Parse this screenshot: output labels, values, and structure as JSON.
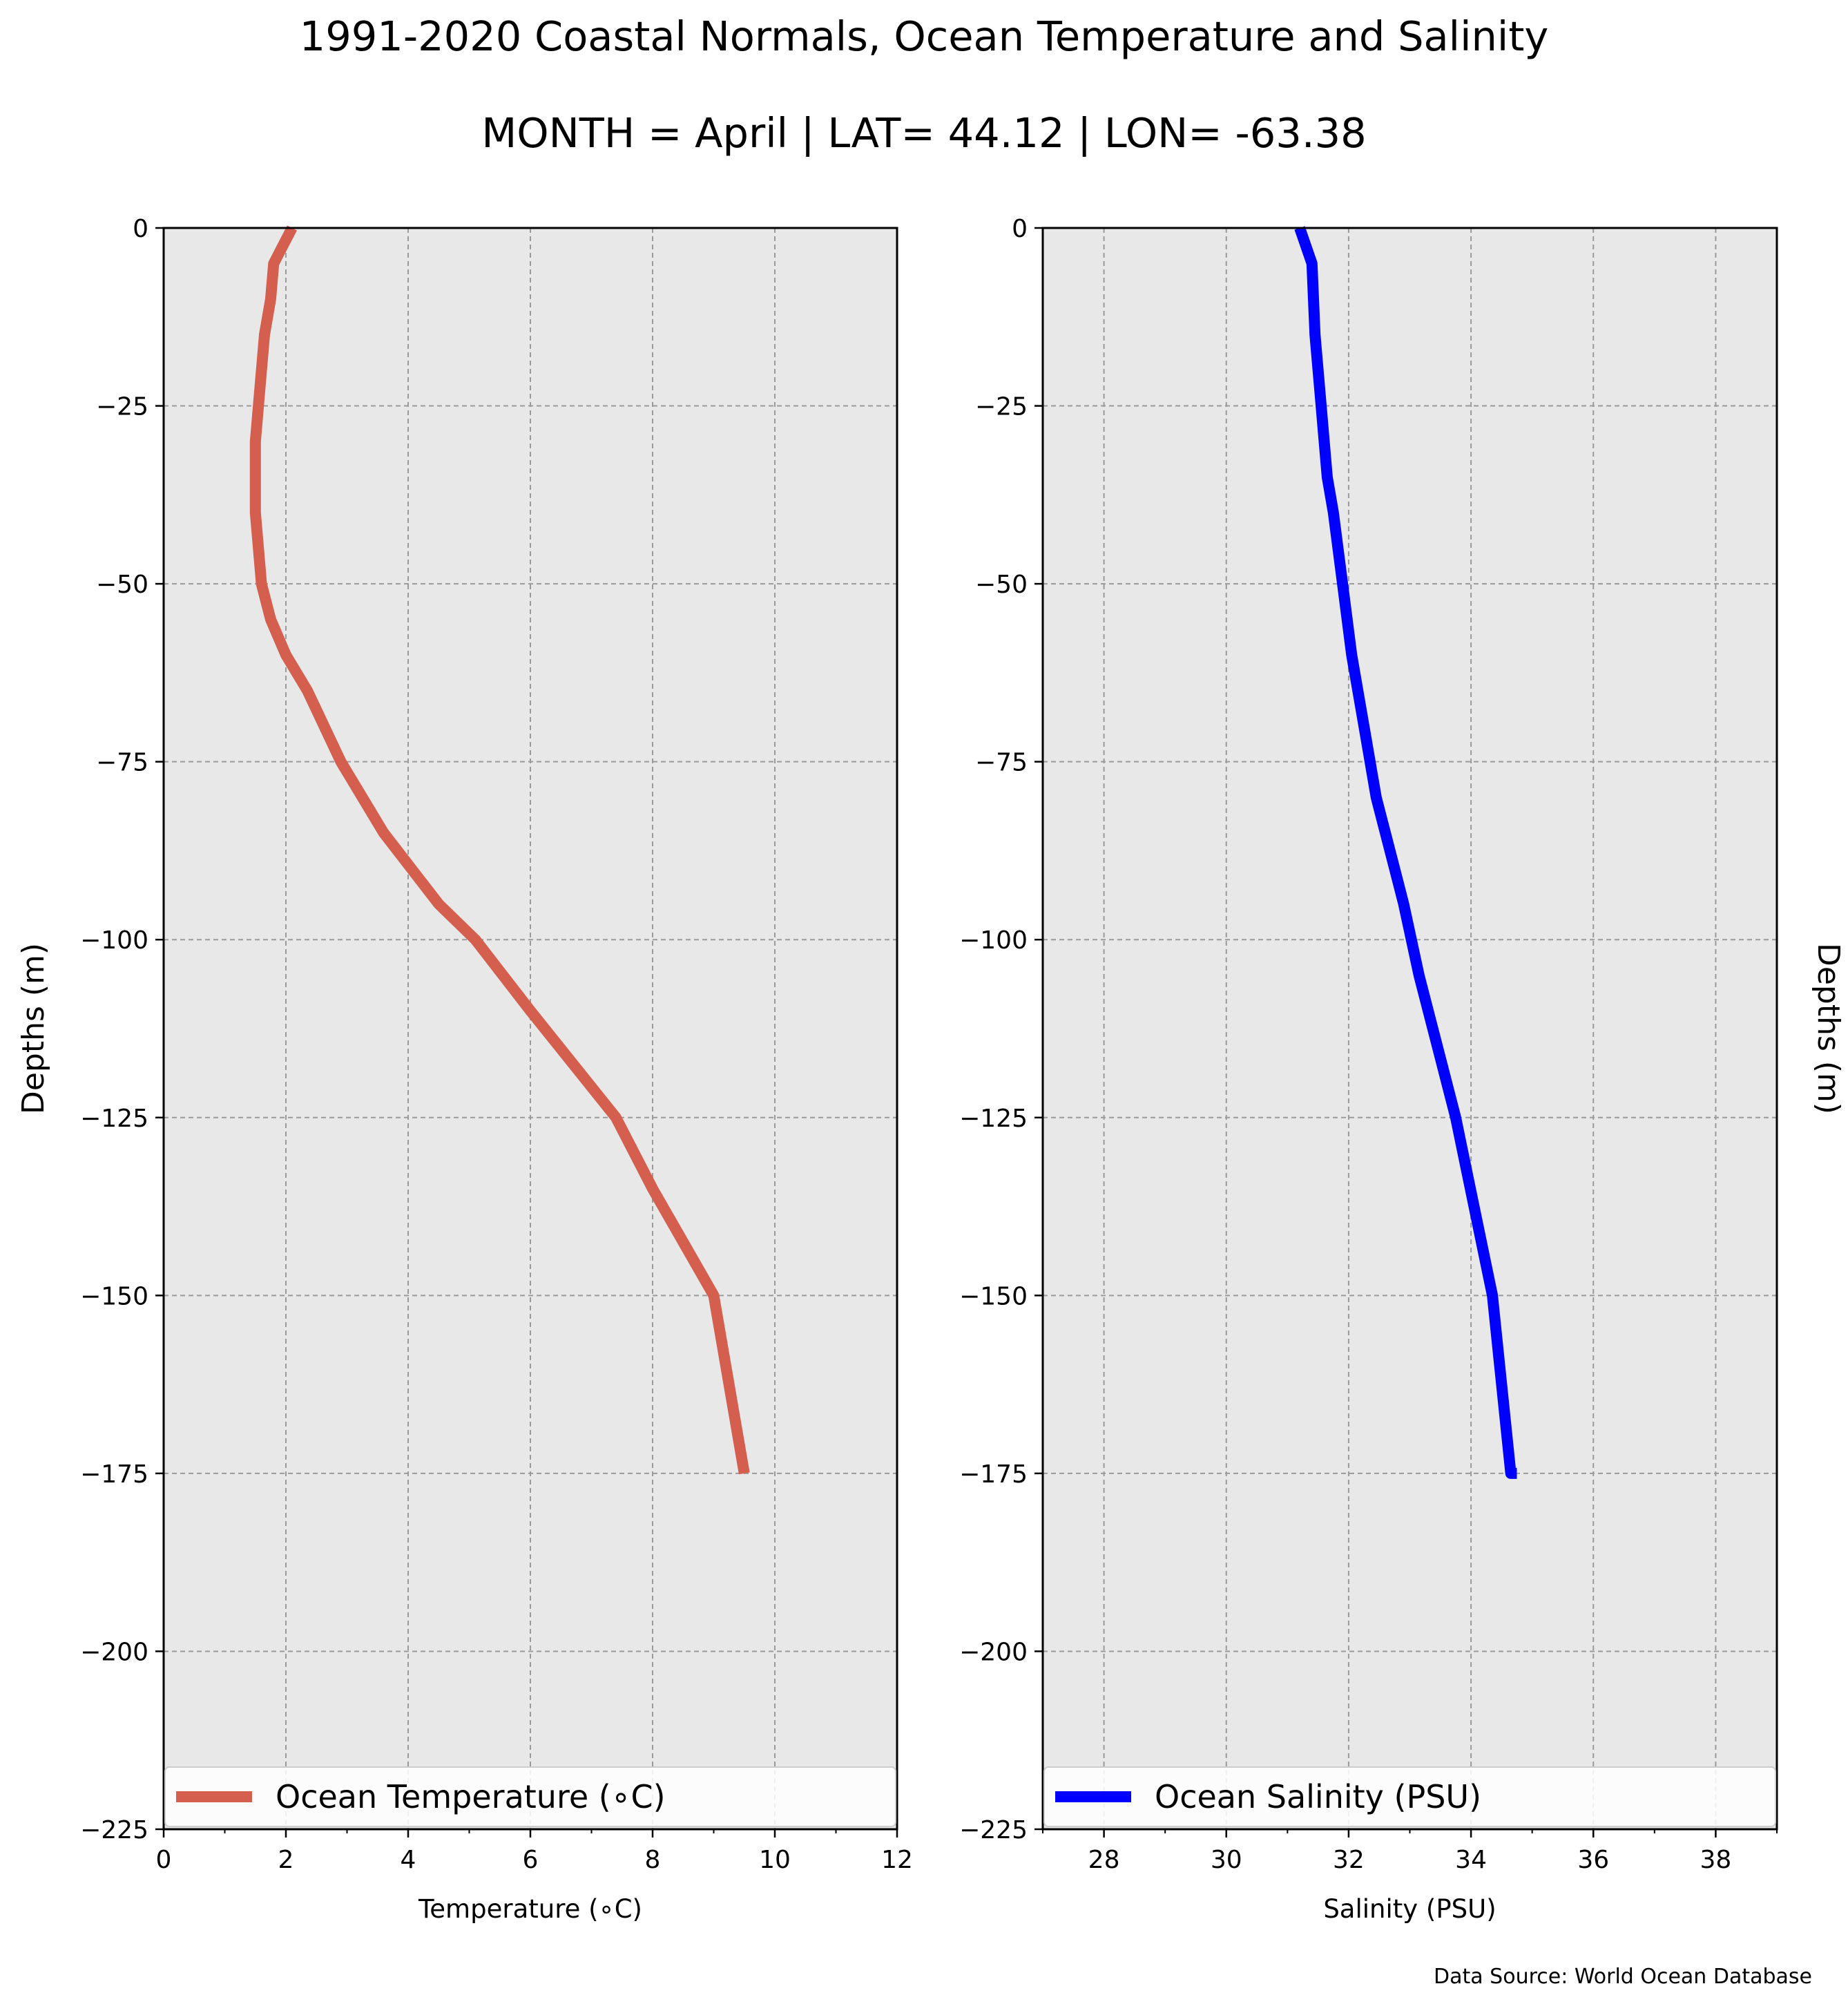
{
  "title": "1991-2020 Coastal Normals, Ocean Temperature and Salinity",
  "subtitle": "MONTH = April | LAT= 44.12 | LON= -63.38",
  "source_note": "Data Source: World Ocean Database",
  "chart_data": [
    {
      "type": "line",
      "xlabel": "Temperature (∘C)",
      "ylabel": "Depths (m)",
      "xlim": [
        0,
        12
      ],
      "ylim": [
        -225,
        0
      ],
      "xticks": [
        0,
        2,
        4,
        6,
        8,
        10,
        12
      ],
      "xtick_labels": [
        "0",
        "2",
        "4",
        "6",
        "8",
        "10",
        "12"
      ],
      "yticks": [
        0,
        -25,
        -50,
        -75,
        -100,
        -125,
        -150,
        -175,
        -200,
        -225
      ],
      "ytick_labels": [
        "0",
        "−25",
        "−50",
        "−75",
        "−100",
        "−125",
        "−150",
        "−175",
        "−200",
        "−225"
      ],
      "grid": true,
      "legend_position": "bottom-left",
      "series": [
        {
          "name": "Ocean Temperature (∘C)",
          "color": "#d45f4f",
          "x": [
            2.1,
            1.8,
            1.75,
            1.65,
            1.55,
            1.5,
            1.5,
            1.55,
            1.6,
            1.75,
            2.0,
            2.35,
            2.9,
            3.6,
            4.5,
            5.1,
            6.0,
            6.7,
            7.4,
            8.0,
            8.5,
            9.0,
            9.5
          ],
          "y": [
            0,
            -5,
            -10,
            -15,
            -25,
            -30,
            -40,
            -45,
            -50,
            -55,
            -60,
            -65,
            -75,
            -85,
            -95,
            -100,
            -110,
            -117.5,
            -125,
            -135,
            -142.5,
            -150,
            -175
          ]
        }
      ]
    },
    {
      "type": "line",
      "xlabel": "Salinity (PSU)",
      "ylabel": "Depths (m)",
      "ylabel_position": "right",
      "xlim": [
        27,
        39
      ],
      "ylim": [
        -225,
        0
      ],
      "xticks": [
        28,
        30,
        32,
        34,
        36,
        38
      ],
      "xtick_labels": [
        "28",
        "30",
        "32",
        "34",
        "36",
        "38"
      ],
      "yticks": [
        0,
        -25,
        -50,
        -75,
        -100,
        -125,
        -150,
        -175,
        -200,
        -225
      ],
      "ytick_labels": [
        "0",
        "−25",
        "−50",
        "−75",
        "−100",
        "−125",
        "−150",
        "−175",
        "−200",
        "−225"
      ],
      "grid": true,
      "legend_position": "bottom-left",
      "series": [
        {
          "name": "Ocean Salinity (PSU)",
          "color": "#0000ff",
          "x": [
            31.2,
            31.4,
            31.45,
            31.55,
            31.65,
            31.75,
            31.9,
            32.05,
            32.25,
            32.45,
            32.6,
            32.75,
            32.9,
            33.15,
            33.45,
            33.75,
            34.05,
            34.35,
            34.65,
            34.75
          ],
          "y": [
            0,
            -5,
            -15,
            -25,
            -35,
            -40,
            -50,
            -60,
            -70,
            -80,
            -85,
            -90,
            -95,
            -105,
            -115,
            -125,
            -137.5,
            -150,
            -175,
            -175
          ]
        }
      ]
    }
  ]
}
